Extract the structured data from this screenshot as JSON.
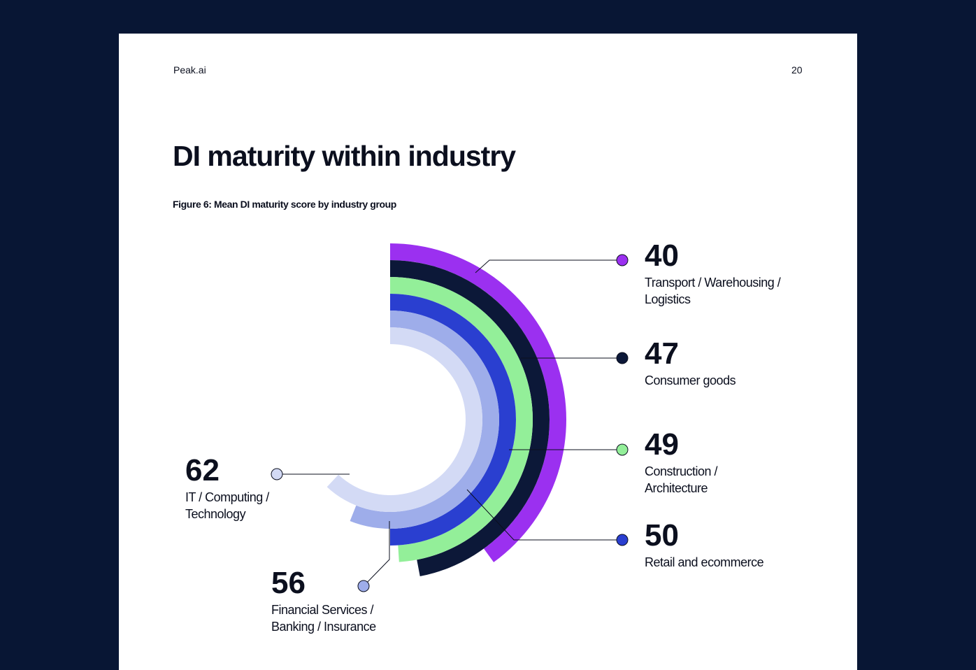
{
  "header": {
    "brand": "Peak.ai",
    "page": "20"
  },
  "chart_data": {
    "type": "radial-bar",
    "title": "DI maturity within industry",
    "subtitle": "Figure 6:  Mean DI maturity score by industry group",
    "categories": [
      "Transport / Warehousing / Logistics",
      "Consumer goods",
      "Construction / Architecture",
      "Retail and ecommerce",
      "Financial Services / Banking / Insurance",
      "IT / Computing / Technology"
    ],
    "values": [
      40,
      47,
      49,
      50,
      56,
      62
    ],
    "colors": [
      "#9b30f0",
      "#0c1838",
      "#93ef99",
      "#2a3fd0",
      "#9eadea",
      "#d3daf5"
    ]
  }
}
